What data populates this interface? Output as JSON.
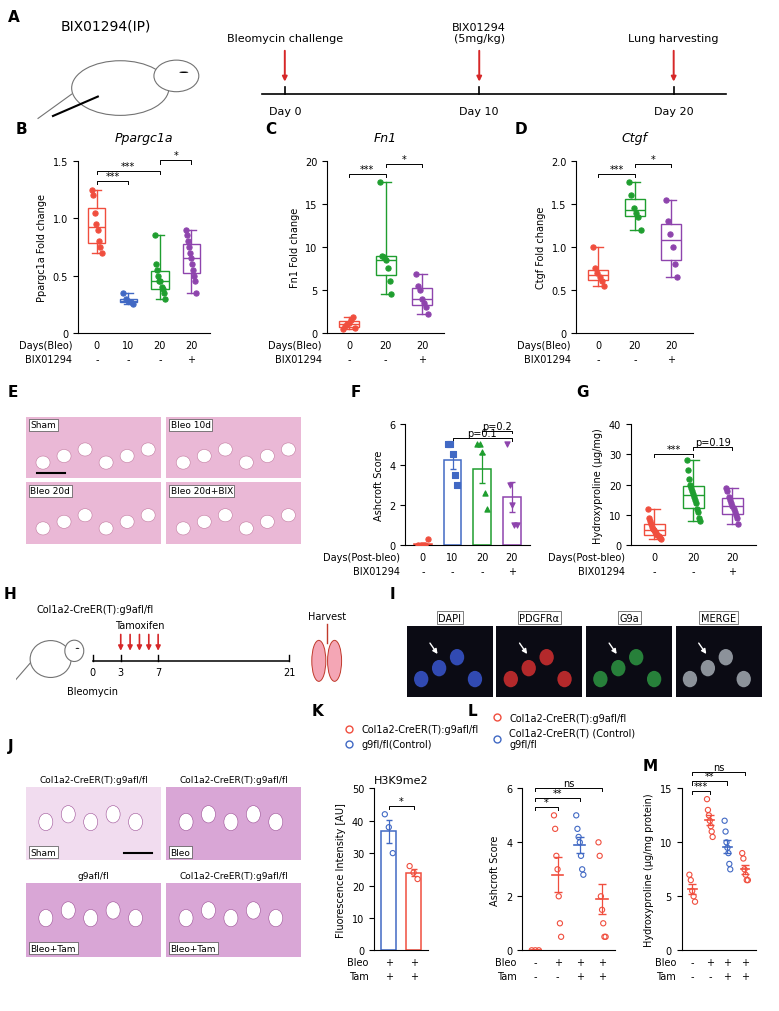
{
  "diagrams": [
    {
      "panel": "A",
      "label": "BIX01294(IP)",
      "events": [
        {
          "day": "Day 0",
          "text": "Bleomycin challenge"
        },
        {
          "day": "Day 10",
          "text": "BIX01294\n(5mg/kg)"
        },
        {
          "day": "Day 20",
          "text": "Lung harvesting"
        }
      ]
    },
    {
      "panel": "H",
      "label": "Col1a2-CreER(T):g9afl/fl",
      "start": "Bleomycin",
      "treatment": "Tamoxifen",
      "end": "Harvest",
      "days": [
        "0",
        "3",
        "7",
        "21"
      ]
    }
  ],
  "images": [
    {
      "panel": "E",
      "tiles": [
        {
          "label": "Sham"
        },
        {
          "label": "Bleo 10d"
        },
        {
          "label": "Bleo 20d"
        },
        {
          "label": "Bleo 20d+BIX"
        }
      ]
    },
    {
      "panel": "I",
      "tiles": [
        {
          "label": "DAPI",
          "color": "#3b5bdb"
        },
        {
          "label": "PDGFRα",
          "color": "#e03131"
        },
        {
          "label": "G9a",
          "color": "#2f9e44"
        },
        {
          "label": "MERGE",
          "color": "#adb5bd"
        }
      ]
    },
    {
      "panel": "J",
      "tiles": [
        {
          "header": "Col1a2-CreER(T):g9afl/fl",
          "label": "Sham"
        },
        {
          "header": "Col1a2-CreER(T):g9afl/fl",
          "label": "Bleo"
        },
        {
          "header": "g9afl/fl",
          "label": "Bleo+Tam"
        },
        {
          "header": "Col1a2-CreER(T):g9afl/fl",
          "label": "Bleo+Tam"
        }
      ]
    }
  ],
  "chart_data": [
    {
      "panel": "B",
      "type": "box",
      "title": "Ppargc1a",
      "y_label": "Ppargc1a Fold change",
      "ylim": [
        0,
        1.5
      ],
      "yticks": [
        0,
        0.5,
        1.0,
        1.5
      ],
      "x_label": "Days(Bleo)",
      "categories": [
        "0",
        "10",
        "20",
        "20"
      ],
      "second_row": {
        "name": "BIX01294",
        "labels": [
          "-",
          "-",
          "-",
          "+"
        ]
      },
      "groups": [
        {
          "color": "#f04e3e",
          "marker": "circle",
          "values": [
            1.25,
            1.2,
            1.05,
            0.95,
            0.9,
            0.8,
            0.75,
            0.7
          ]
        },
        {
          "color": "#4169c4",
          "marker": "circle",
          "values": [
            0.35,
            0.3,
            0.28,
            0.27,
            0.25
          ]
        },
        {
          "color": "#1f9e2f",
          "marker": "circle",
          "values": [
            0.85,
            0.6,
            0.55,
            0.5,
            0.45,
            0.45,
            0.4,
            0.38,
            0.35,
            0.3
          ]
        },
        {
          "color": "#8e44ad",
          "marker": "circle",
          "values": [
            0.9,
            0.85,
            0.8,
            0.75,
            0.7,
            0.65,
            0.6,
            0.55,
            0.5,
            0.45,
            0.35
          ]
        }
      ],
      "comparisons": [
        {
          "from": 0,
          "to": 1,
          "label": "***"
        },
        {
          "from": 0,
          "to": 2,
          "label": "***"
        },
        {
          "from": 2,
          "to": 3,
          "label": "*"
        }
      ]
    },
    {
      "panel": "C",
      "type": "box",
      "title": "Fn1",
      "y_label": "Fn1 Fold change",
      "ylim": [
        0,
        20
      ],
      "yticks": [
        0,
        5,
        10,
        15,
        20
      ],
      "x_label": "Days(Bleo)",
      "categories": [
        "0",
        "20",
        "20"
      ],
      "second_row": {
        "name": "BIX01294",
        "labels": [
          "-",
          "-",
          "+"
        ]
      },
      "groups": [
        {
          "color": "#f04e3e",
          "marker": "circle",
          "values": [
            0.5,
            0.8,
            1.0,
            1.2,
            1.5,
            1.8,
            0.6
          ]
        },
        {
          "color": "#1f9e2f",
          "marker": "circle",
          "values": [
            17.5,
            9.0,
            8.8,
            8.5,
            7.5,
            6.0,
            4.5
          ]
        },
        {
          "color": "#8e44ad",
          "marker": "circle",
          "values": [
            6.8,
            5.5,
            5.0,
            4.0,
            3.5,
            3.0,
            2.2
          ]
        }
      ],
      "comparisons": [
        {
          "from": 0,
          "to": 1,
          "label": "***"
        },
        {
          "from": 1,
          "to": 2,
          "label": "*"
        }
      ]
    },
    {
      "panel": "D",
      "type": "box",
      "title": "Ctgf",
      "y_label": "Ctgf Fold change",
      "ylim": [
        0,
        2.0
      ],
      "yticks": [
        0,
        0.5,
        1.0,
        1.5,
        2.0
      ],
      "x_label": "Days(Bleo)",
      "categories": [
        "0",
        "20",
        "20"
      ],
      "second_row": {
        "name": "BIX01294",
        "labels": [
          "-",
          "-",
          "+"
        ]
      },
      "groups": [
        {
          "color": "#f04e3e",
          "marker": "circle",
          "values": [
            1.0,
            0.75,
            0.7,
            0.65,
            0.6,
            0.55
          ]
        },
        {
          "color": "#1f9e2f",
          "marker": "circle",
          "values": [
            1.75,
            1.6,
            1.45,
            1.4,
            1.35,
            1.2
          ]
        },
        {
          "color": "#8e44ad",
          "marker": "circle",
          "values": [
            1.55,
            1.3,
            1.15,
            1.0,
            0.8,
            0.65
          ]
        }
      ],
      "comparisons": [
        {
          "from": 0,
          "to": 1,
          "label": "***"
        },
        {
          "from": 1,
          "to": 2,
          "label": "*"
        }
      ]
    },
    {
      "panel": "F",
      "type": "bar",
      "y_label": "Ashcroft Score",
      "ylim": [
        0,
        6
      ],
      "yticks": [
        0,
        2,
        4,
        6
      ],
      "x_label": "Days(Post-bleo)",
      "categories": [
        "0",
        "10",
        "20",
        "20"
      ],
      "second_row": {
        "name": "BIX01294",
        "labels": [
          "-",
          "-",
          "-",
          "+"
        ]
      },
      "groups": [
        {
          "color": "#f04e3e",
          "marker": "circle",
          "values": [
            0,
            0,
            0,
            0,
            0.3
          ],
          "mean": 0.06,
          "sem": 0.06
        },
        {
          "color": "#4169c4",
          "marker": "square",
          "values": [
            5,
            5,
            4.5,
            3.5,
            3
          ],
          "mean": 4.2,
          "sem": 0.4
        },
        {
          "color": "#1f9e2f",
          "marker": "triangle_up",
          "values": [
            5,
            5,
            4.6,
            2.6,
            1.8
          ],
          "mean": 3.8,
          "sem": 0.7
        },
        {
          "color": "#8e44ad",
          "marker": "triangle_down",
          "values": [
            5,
            3,
            2,
            1,
            1
          ],
          "mean": 2.4,
          "sem": 0.75
        }
      ],
      "comparisons": [
        {
          "from": 1,
          "to": 3,
          "label": "p=0.1"
        },
        {
          "from": 2,
          "to": 3,
          "label": "p=0.2"
        }
      ]
    },
    {
      "panel": "G",
      "type": "box",
      "y_label": "Hydroxyproline (μg/mg)",
      "ylim": [
        0,
        40
      ],
      "yticks": [
        0,
        10,
        20,
        30,
        40
      ],
      "x_label": "Days(Post-bleo)",
      "categories": [
        "0",
        "20",
        "20"
      ],
      "second_row": {
        "name": "BIX01294",
        "labels": [
          "-",
          "-",
          "+"
        ]
      },
      "groups": [
        {
          "color": "#f04e3e",
          "marker": "circle",
          "values": [
            12,
            9,
            8,
            7,
            6,
            5.5,
            5,
            4.5,
            4,
            3.5,
            3,
            2.5,
            2
          ]
        },
        {
          "color": "#1f9e2f",
          "marker": "circle",
          "values": [
            28,
            25,
            22,
            20,
            19,
            18,
            17,
            16,
            15,
            14,
            12,
            11,
            9,
            8
          ]
        },
        {
          "color": "#8e44ad",
          "marker": "circle",
          "values": [
            19,
            18,
            16,
            15,
            14,
            13,
            12,
            11,
            10,
            9,
            7
          ]
        }
      ],
      "comparisons": [
        {
          "from": 0,
          "to": 1,
          "label": "***"
        },
        {
          "from": 1,
          "to": 2,
          "label": "p=0.19"
        }
      ]
    },
    {
      "panel": "K",
      "type": "bar",
      "title": "H3K9me2",
      "y_label": "Fluorescence Intensity [AU]",
      "ylim": [
        0,
        50
      ],
      "yticks": [
        0,
        10,
        20,
        30,
        40,
        50
      ],
      "x_label": "Bleo",
      "categories": [
        "+",
        "+"
      ],
      "second_row": {
        "name": "Tam",
        "labels": [
          "+",
          "+"
        ]
      },
      "groups": [
        {
          "color": "#4169c4",
          "marker": "open_circle",
          "values": [
            42,
            38,
            30
          ],
          "mean": 36.7,
          "sem": 3.5
        },
        {
          "color": "#f04e3e",
          "marker": "open_circle",
          "values": [
            26,
            24,
            22
          ],
          "mean": 24,
          "sem": 1.2
        }
      ],
      "comparisons": [
        {
          "from": 0,
          "to": 1,
          "label": "*"
        }
      ],
      "legend": "lower left",
      "series": [
        {
          "name": "Col1a2-CreER(T):g9afl/fl",
          "color": "#f04e3e",
          "marker": "open_circle"
        },
        {
          "name": "g9fl/fl(Control)",
          "color": "#4169c4",
          "marker": "open_circle"
        }
      ]
    },
    {
      "panel": "L",
      "type": "dot_plot",
      "y_label": "Ashcroft Score",
      "ylim": [
        0,
        6
      ],
      "yticks": [
        0,
        2,
        4,
        6
      ],
      "x_label": "Bleo",
      "categories": [
        "-",
        "+",
        "+",
        "+"
      ],
      "second_row": {
        "name": "Tam",
        "labels": [
          "-",
          "-",
          "+",
          "+"
        ]
      },
      "groups": [
        {
          "color": "#f04e3e",
          "marker": "open_circle",
          "values": [
            0,
            0,
            0
          ],
          "mean": 0,
          "sem": 0
        },
        {
          "color": "#f04e3e",
          "marker": "open_circle",
          "values": [
            5,
            4.5,
            3.5,
            3,
            2,
            1,
            0.5
          ],
          "mean": 2.8,
          "sem": 0.65
        },
        {
          "color": "#4169c4",
          "marker": "open_circle",
          "values": [
            5,
            4.5,
            4.2,
            4,
            3.5,
            3,
            2.8
          ],
          "mean": 3.9,
          "sem": 0.3
        },
        {
          "color": "#f04e3e",
          "marker": "open_circle",
          "values": [
            4,
            3.5,
            2,
            1.5,
            1,
            0.5,
            0.5
          ],
          "mean": 1.9,
          "sem": 0.55
        }
      ],
      "comparisons": [
        {
          "from": 0,
          "to": 1,
          "label": "*"
        },
        {
          "from": 0,
          "to": 2,
          "label": "**"
        },
        {
          "from": 0,
          "to": 3,
          "label": "ns"
        }
      ],
      "legend": "lower left",
      "series": [
        {
          "name": "Col1a2-CreER(T):g9afl/fl",
          "color": "#f04e3e",
          "marker": "open_circle"
        },
        {
          "name": "Col1a2-CreER(T) (Control)\ng9fl/fl",
          "color": "#4169c4",
          "marker": "open_circle"
        }
      ]
    },
    {
      "panel": "M",
      "type": "dot_plot",
      "y_label": "Hydroxyproline (μg/mg protein)",
      "ylim": [
        0,
        15
      ],
      "yticks": [
        0,
        5,
        10,
        15
      ],
      "x_label": "Bleo",
      "categories": [
        "-",
        "+",
        "+",
        "+"
      ],
      "second_row": {
        "name": "Tam",
        "labels": [
          "-",
          "-",
          "+",
          "+"
        ]
      },
      "groups": [
        {
          "color": "#f04e3e",
          "marker": "open_circle",
          "values": [
            7,
            6.5,
            5.5,
            5,
            4.5
          ],
          "mean": 5.7,
          "sem": 0.45
        },
        {
          "color": "#f04e3e",
          "marker": "open_circle",
          "values": [
            14,
            13,
            12.5,
            12,
            11.5,
            11,
            10.5
          ],
          "mean": 12.1,
          "sem": 0.45
        },
        {
          "color": "#4169c4",
          "marker": "open_circle",
          "values": [
            12,
            11,
            10,
            9.5,
            9,
            8,
            7.5
          ],
          "mean": 9.6,
          "sem": 0.6
        },
        {
          "color": "#f04e3e",
          "marker": "open_circle",
          "values": [
            9,
            8.5,
            7.5,
            7,
            6.5,
            6.5
          ],
          "mean": 7.5,
          "sem": 0.4
        }
      ],
      "comparisons": [
        {
          "from": 0,
          "to": 1,
          "label": "***"
        },
        {
          "from": 0,
          "to": 2,
          "label": "**"
        },
        {
          "from": 0,
          "to": 3,
          "label": "ns"
        }
      ]
    }
  ]
}
